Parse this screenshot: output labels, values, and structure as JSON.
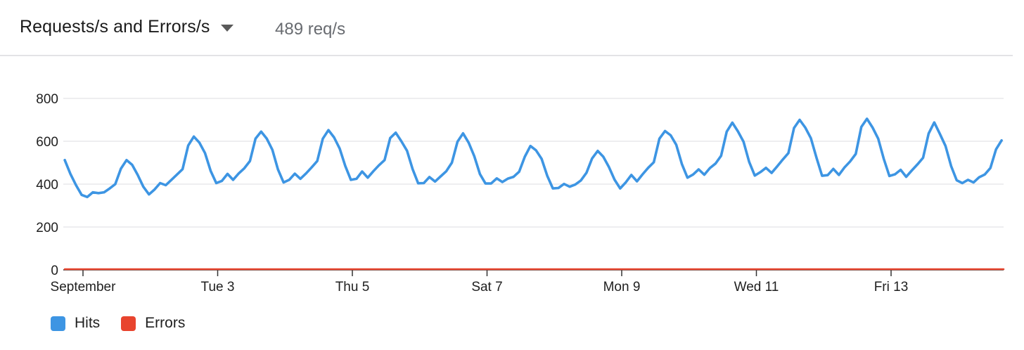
{
  "header": {
    "title": "Requests/s and Errors/s",
    "rate": "489 req/s"
  },
  "legend": [
    {
      "label": "Hits",
      "color": "#3d95e3"
    },
    {
      "label": "Errors",
      "color": "#e8442e"
    }
  ],
  "chart_data": {
    "type": "line",
    "title": "Requests/s and Errors/s",
    "xlabel": "",
    "ylabel": "",
    "ylim": [
      0,
      800
    ],
    "yticks": [
      0,
      200,
      400,
      600,
      800
    ],
    "xticks": [
      {
        "label": "September",
        "day": 1
      },
      {
        "label": "Tue 3",
        "day": 3
      },
      {
        "label": "Thu 5",
        "day": 5
      },
      {
        "label": "Sat 7",
        "day": 7
      },
      {
        "label": "Mon 9",
        "day": 9
      },
      {
        "label": "Wed 11",
        "day": 11
      },
      {
        "label": "Fri 13",
        "day": 13
      }
    ],
    "grid": true,
    "legend_position": "bottom-left",
    "x_unit": "September day of month (hourly samples every 2 hours)",
    "series": [
      {
        "name": "Hits",
        "color": "#3d95e3",
        "x_start_day": 0.73,
        "x_step_days": 0.0833,
        "values": [
          512,
          448,
          395,
          350,
          340,
          362,
          358,
          362,
          380,
          400,
          472,
          512,
          490,
          443,
          388,
          352,
          375,
          405,
          395,
          420,
          445,
          470,
          580,
          622,
          593,
          545,
          462,
          405,
          415,
          448,
          420,
          450,
          474,
          508,
          612,
          645,
          612,
          560,
          469,
          408,
          420,
          449,
          425,
          450,
          478,
          508,
          612,
          652,
          618,
          566,
          485,
          420,
          425,
          459,
          430,
          460,
          488,
          512,
          615,
          640,
          600,
          556,
          470,
          404,
          405,
          433,
          412,
          436,
          460,
          500,
          598,
          637,
          593,
          530,
          447,
          403,
          403,
          427,
          410,
          426,
          434,
          458,
          528,
          578,
          558,
          518,
          439,
          380,
          382,
          401,
          388,
          398,
          417,
          453,
          520,
          555,
          528,
          480,
          421,
          380,
          408,
          443,
          413,
          446,
          476,
          502,
          612,
          648,
          628,
          584,
          494,
          430,
          445,
          469,
          444,
          475,
          496,
          532,
          645,
          687,
          646,
          598,
          504,
          440,
          456,
          476,
          452,
          483,
          515,
          545,
          662,
          700,
          664,
          614,
          524,
          439,
          442,
          471,
          443,
          478,
          506,
          541,
          667,
          705,
          664,
          612,
          518,
          438,
          446,
          467,
          434,
          464,
          492,
          523,
          636,
          688,
          634,
          578,
          484,
          418,
          405,
          420,
          408,
          432,
          445,
          475,
          562,
          604
        ]
      },
      {
        "name": "Errors",
        "color": "#e8442e",
        "x_start_day": 0.73,
        "x_step_days": 0.0833,
        "values": [
          0,
          0,
          0,
          0,
          0,
          0,
          0,
          0,
          0,
          0,
          0,
          0,
          0,
          0,
          0,
          0,
          0,
          0,
          0,
          0,
          0,
          0,
          0,
          0,
          0,
          0,
          0,
          0,
          0,
          0,
          0,
          0,
          0,
          0,
          0,
          0,
          0,
          0,
          0,
          0,
          0,
          0,
          0,
          0,
          0,
          0,
          0,
          0,
          0,
          0,
          0,
          0,
          0,
          0,
          0,
          0,
          0,
          0,
          0,
          0,
          0,
          0,
          0,
          0,
          0,
          0,
          0,
          0,
          0,
          0,
          0,
          0,
          0,
          0,
          0,
          0,
          0,
          0,
          0,
          0,
          0,
          0,
          0,
          0,
          0,
          0,
          0,
          0,
          0,
          0,
          0,
          0,
          0,
          0,
          0,
          0,
          0,
          0,
          0,
          0,
          0,
          0,
          0,
          0,
          0,
          0,
          0,
          0,
          0,
          0,
          0,
          0,
          0,
          0,
          0,
          0,
          0,
          0,
          0,
          0,
          0,
          0,
          0,
          0,
          0,
          0,
          0,
          0,
          0,
          0,
          0,
          0,
          0,
          0,
          0,
          0,
          0,
          0,
          0,
          0,
          0,
          0,
          0,
          0,
          0,
          0,
          0,
          0,
          0,
          0,
          0,
          0,
          0,
          0,
          0,
          0,
          0,
          0,
          0,
          0,
          0,
          0,
          0,
          0,
          0,
          0,
          0,
          0,
          0,
          0
        ]
      }
    ]
  }
}
